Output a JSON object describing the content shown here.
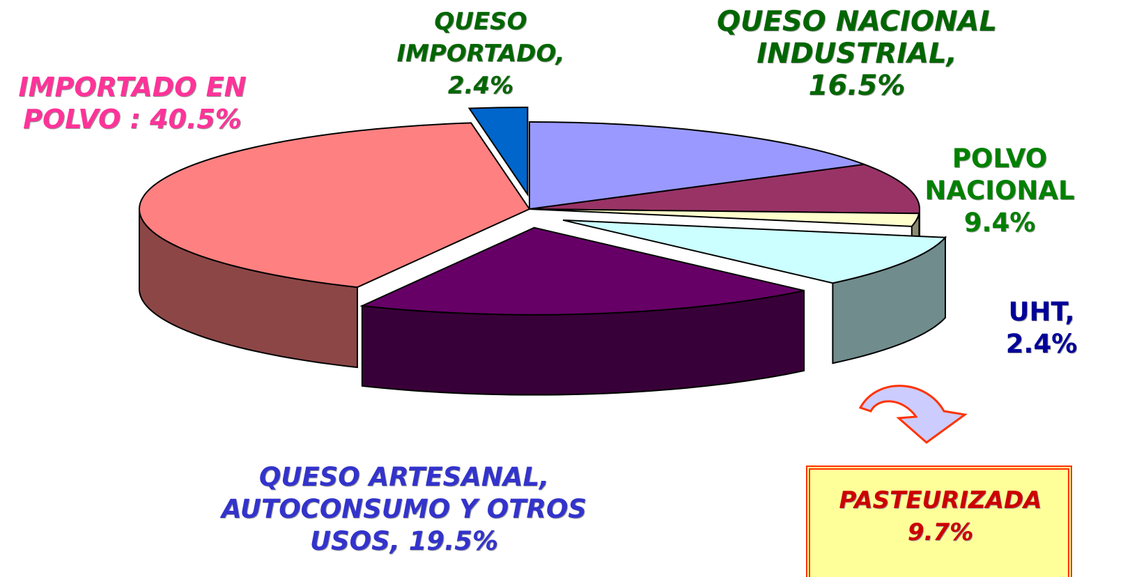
{
  "chart_data": {
    "type": "pie",
    "categories": [
      "QUESO NACIONAL INDUSTRIAL,",
      "POLVO NACIONAL",
      "UHT,",
      "PASTEURIZADA",
      "QUESO ARTESANAL, AUTOCONSUMO Y OTROS USOS,",
      "IMPORTADO EN POLVO :",
      "QUESO IMPORTADO,"
    ],
    "values": [
      16.5,
      9.4,
      2.4,
      9.7,
      19.5,
      40.5,
      2.4
    ],
    "value_labels": [
      "16.5%",
      "9.4%",
      "2.4%",
      "9.7%",
      "19.5%",
      "40.5%",
      "2.4%"
    ],
    "colors": [
      "#9999ff",
      "#993366",
      "#ffffcc",
      "#ccffff",
      "#660066",
      "#ff8080",
      "#0066cc"
    ],
    "label_colors": [
      "#006600",
      "#008000",
      "#000099",
      "#cc0000",
      "#3333cc",
      "#ff3399",
      "#006600"
    ]
  }
}
